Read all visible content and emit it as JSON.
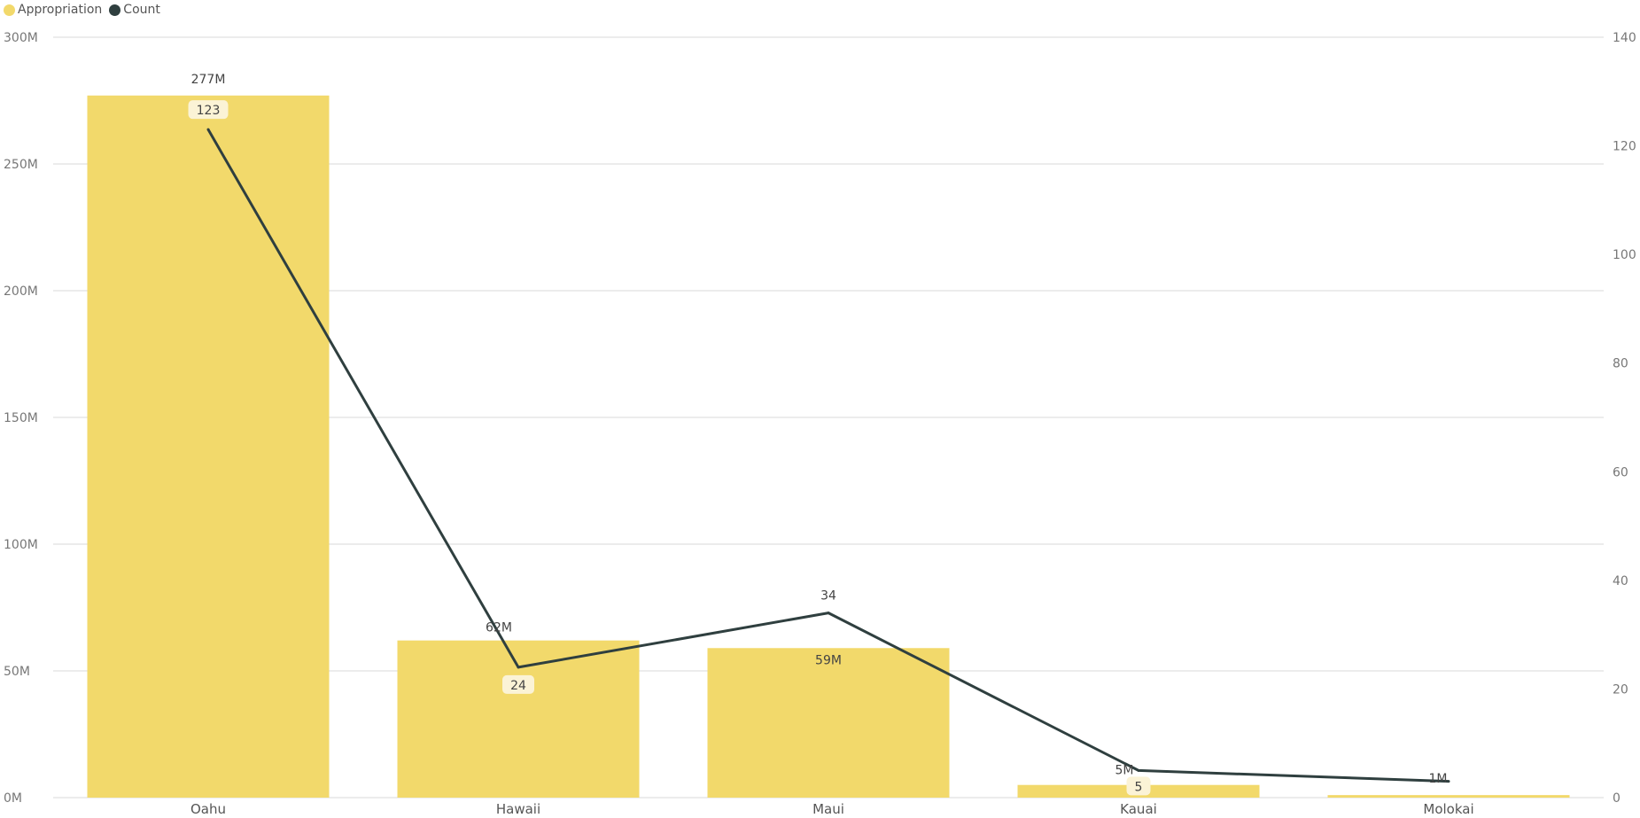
{
  "legend": [
    {
      "label": "Appropriation",
      "color": "#F2D96B"
    },
    {
      "label": "Count",
      "color": "#2F3F3F"
    }
  ],
  "chart_data": {
    "type": "bar",
    "combo": "bar+line",
    "categories": [
      "Oahu",
      "Hawaii",
      "Maui",
      "Kauai",
      "Molokai"
    ],
    "series": [
      {
        "name": "Appropriation",
        "type": "bar",
        "axis": "left",
        "values": [
          277,
          62,
          59,
          5,
          1
        ],
        "labels": [
          "277M",
          "62M",
          "59M",
          "5M",
          "1M"
        ],
        "color": "#F2D96B"
      },
      {
        "name": "Count",
        "type": "line",
        "axis": "right",
        "values": [
          123,
          24,
          34,
          5,
          3
        ],
        "labels": [
          "123",
          "24",
          "34",
          "5",
          ""
        ],
        "color": "#2F3F3F"
      }
    ],
    "y_left": {
      "unit": "M",
      "ylim": [
        0,
        300
      ],
      "ticks": [
        "0M",
        "50M",
        "100M",
        "150M",
        "200M",
        "250M",
        "300M"
      ]
    },
    "y_right": {
      "ylim": [
        0,
        140
      ],
      "ticks": [
        "0",
        "20",
        "40",
        "60",
        "80",
        "100",
        "120",
        "140"
      ]
    },
    "grid": true,
    "legend_position": "top-left"
  }
}
